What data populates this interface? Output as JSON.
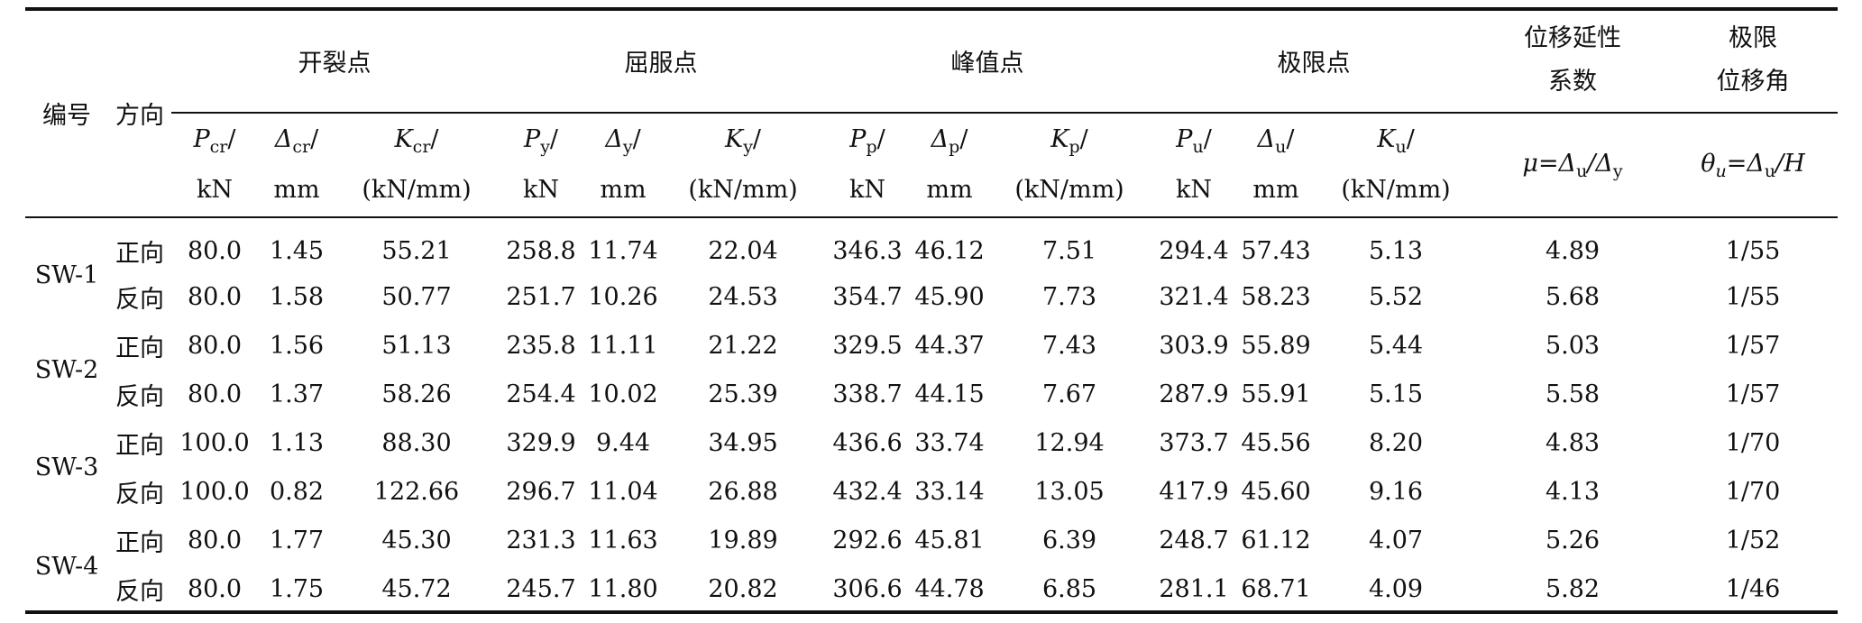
{
  "header": {
    "id_label": "编号",
    "dir_label": "方向",
    "groups": [
      "开裂点",
      "屈服点",
      "峰值点",
      "极限点"
    ],
    "ductility": [
      "位移延性",
      "系数"
    ],
    "drift": [
      "极限",
      "位移角"
    ],
    "sub": [
      {
        "sym": "P",
        "s": "cr",
        "unit": "kN"
      },
      {
        "sym": "Δ",
        "s": "cr",
        "unit": "mm"
      },
      {
        "sym": "K",
        "s": "cr",
        "unit": "(kN/mm)"
      },
      {
        "sym": "P",
        "s": "y",
        "unit": "kN"
      },
      {
        "sym": "Δ",
        "s": "y",
        "unit": "mm"
      },
      {
        "sym": "K",
        "s": "y",
        "unit": "(kN/mm)"
      },
      {
        "sym": "P",
        "s": "p",
        "unit": "kN"
      },
      {
        "sym": "Δ",
        "s": "p",
        "unit": "mm"
      },
      {
        "sym": "K",
        "s": "p",
        "unit": "(kN/mm)"
      },
      {
        "sym": "P",
        "s": "u",
        "unit": "kN"
      },
      {
        "sym": "Δ",
        "s": "u",
        "unit": "mm"
      },
      {
        "sym": "K",
        "s": "u",
        "unit": "(kN/mm)"
      }
    ],
    "mu_formula": {
      "a": "μ=Δ",
      "s1": "u",
      "b": "/Δ",
      "s2": "y"
    },
    "theta_formula": {
      "a": "θ",
      "s0": "u",
      "b": "=Δ",
      "s1": "u",
      "c": "/H"
    }
  },
  "specimens": [
    {
      "id": "SW-1",
      "rows": [
        {
          "dir": "正向",
          "vals": [
            "80.0",
            "1.45",
            "55.21",
            "258.8",
            "11.74",
            "22.04",
            "346.3",
            "46.12",
            "7.51",
            "294.4",
            "57.43",
            "5.13",
            "4.89",
            "1/55"
          ]
        },
        {
          "dir": "反向",
          "vals": [
            "80.0",
            "1.58",
            "50.77",
            "251.7",
            "10.26",
            "24.53",
            "354.7",
            "45.90",
            "7.73",
            "321.4",
            "58.23",
            "5.52",
            "5.68",
            "1/55"
          ]
        }
      ]
    },
    {
      "id": "SW-2",
      "rows": [
        {
          "dir": "正向",
          "vals": [
            "80.0",
            "1.56",
            "51.13",
            "235.8",
            "11.11",
            "21.22",
            "329.5",
            "44.37",
            "7.43",
            "303.9",
            "55.89",
            "5.44",
            "5.03",
            "1/57"
          ]
        },
        {
          "dir": "反向",
          "vals": [
            "80.0",
            "1.37",
            "58.26",
            "254.4",
            "10.02",
            "25.39",
            "338.7",
            "44.15",
            "7.67",
            "287.9",
            "55.91",
            "5.15",
            "5.58",
            "1/57"
          ]
        }
      ]
    },
    {
      "id": "SW-3",
      "rows": [
        {
          "dir": "正向",
          "vals": [
            "100.0",
            "1.13",
            "88.30",
            "329.9",
            "9.44",
            "34.95",
            "436.6",
            "33.74",
            "12.94",
            "373.7",
            "45.56",
            "8.20",
            "4.83",
            "1/70"
          ]
        },
        {
          "dir": "反向",
          "vals": [
            "100.0",
            "0.82",
            "122.66",
            "296.7",
            "11.04",
            "26.88",
            "432.4",
            "33.14",
            "13.05",
            "417.9",
            "45.60",
            "9.16",
            "4.13",
            "1/70"
          ]
        }
      ]
    },
    {
      "id": "SW-4",
      "rows": [
        {
          "dir": "正向",
          "vals": [
            "80.0",
            "1.77",
            "45.30",
            "231.3",
            "11.63",
            "19.89",
            "292.6",
            "45.81",
            "6.39",
            "248.7",
            "61.12",
            "4.07",
            "5.26",
            "1/52"
          ]
        },
        {
          "dir": "反向",
          "vals": [
            "80.0",
            "1.75",
            "45.72",
            "245.7",
            "11.80",
            "20.82",
            "306.6",
            "44.78",
            "6.85",
            "281.1",
            "68.71",
            "4.09",
            "5.82",
            "1/46"
          ]
        }
      ]
    }
  ]
}
